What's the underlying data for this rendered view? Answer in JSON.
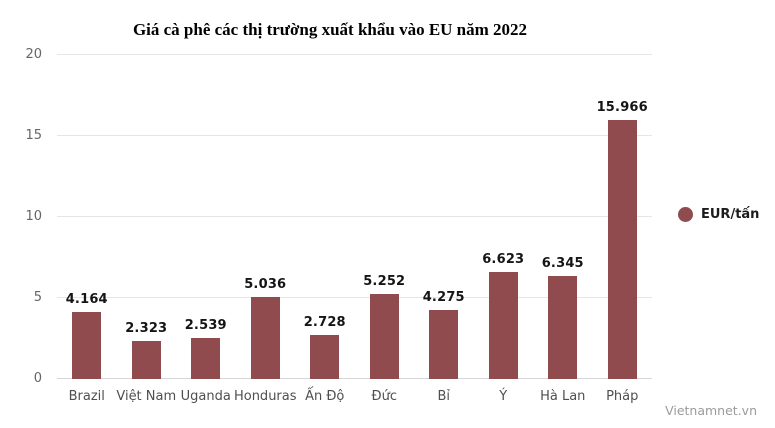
{
  "title": "Giá cà phê các thị trường xuất khẩu vào EU năm 2022",
  "watermark": "Vietnamnet.vn",
  "legend": {
    "label": "EUR/tấn"
  },
  "colors": {
    "bar": "#8f4b4e",
    "gridline": "#e6e6e6",
    "baseline": "#d6d6d6",
    "y_tick_label": "#666666",
    "category_label": "#4f4f4f",
    "value_label": "#151515",
    "watermark": "#9b9b9b",
    "background": "#ffffff"
  },
  "chart_data": {
    "type": "bar",
    "title": "Giá cà phê các thị trường xuất khẩu vào EU năm 2022",
    "categories": [
      "Brazil",
      "Việt Nam",
      "Uganda",
      "Honduras",
      "Ấn Độ",
      "Đức",
      "Bỉ",
      "Ý",
      "Hà Lan",
      "Pháp"
    ],
    "series": [
      {
        "name": "EUR/tấn",
        "values": [
          4.164,
          2.323,
          2.539,
          5.036,
          2.728,
          5.252,
          4.275,
          6.623,
          6.345,
          15.966
        ],
        "value_labels": [
          "4.164",
          "2.323",
          "2.539",
          "5.036",
          "2.728",
          "5.252",
          "4.275",
          "6.623",
          "6.345",
          "15.966"
        ]
      }
    ],
    "xlabel": "",
    "ylabel": "",
    "ylim": [
      0,
      20
    ],
    "yticks": [
      0,
      5,
      10,
      15,
      20
    ],
    "ytick_labels": [
      "0",
      "5",
      "10",
      "15",
      "20"
    ],
    "grid": true,
    "legend_entries": [
      "EUR/tấn"
    ],
    "legend_position": "right"
  }
}
